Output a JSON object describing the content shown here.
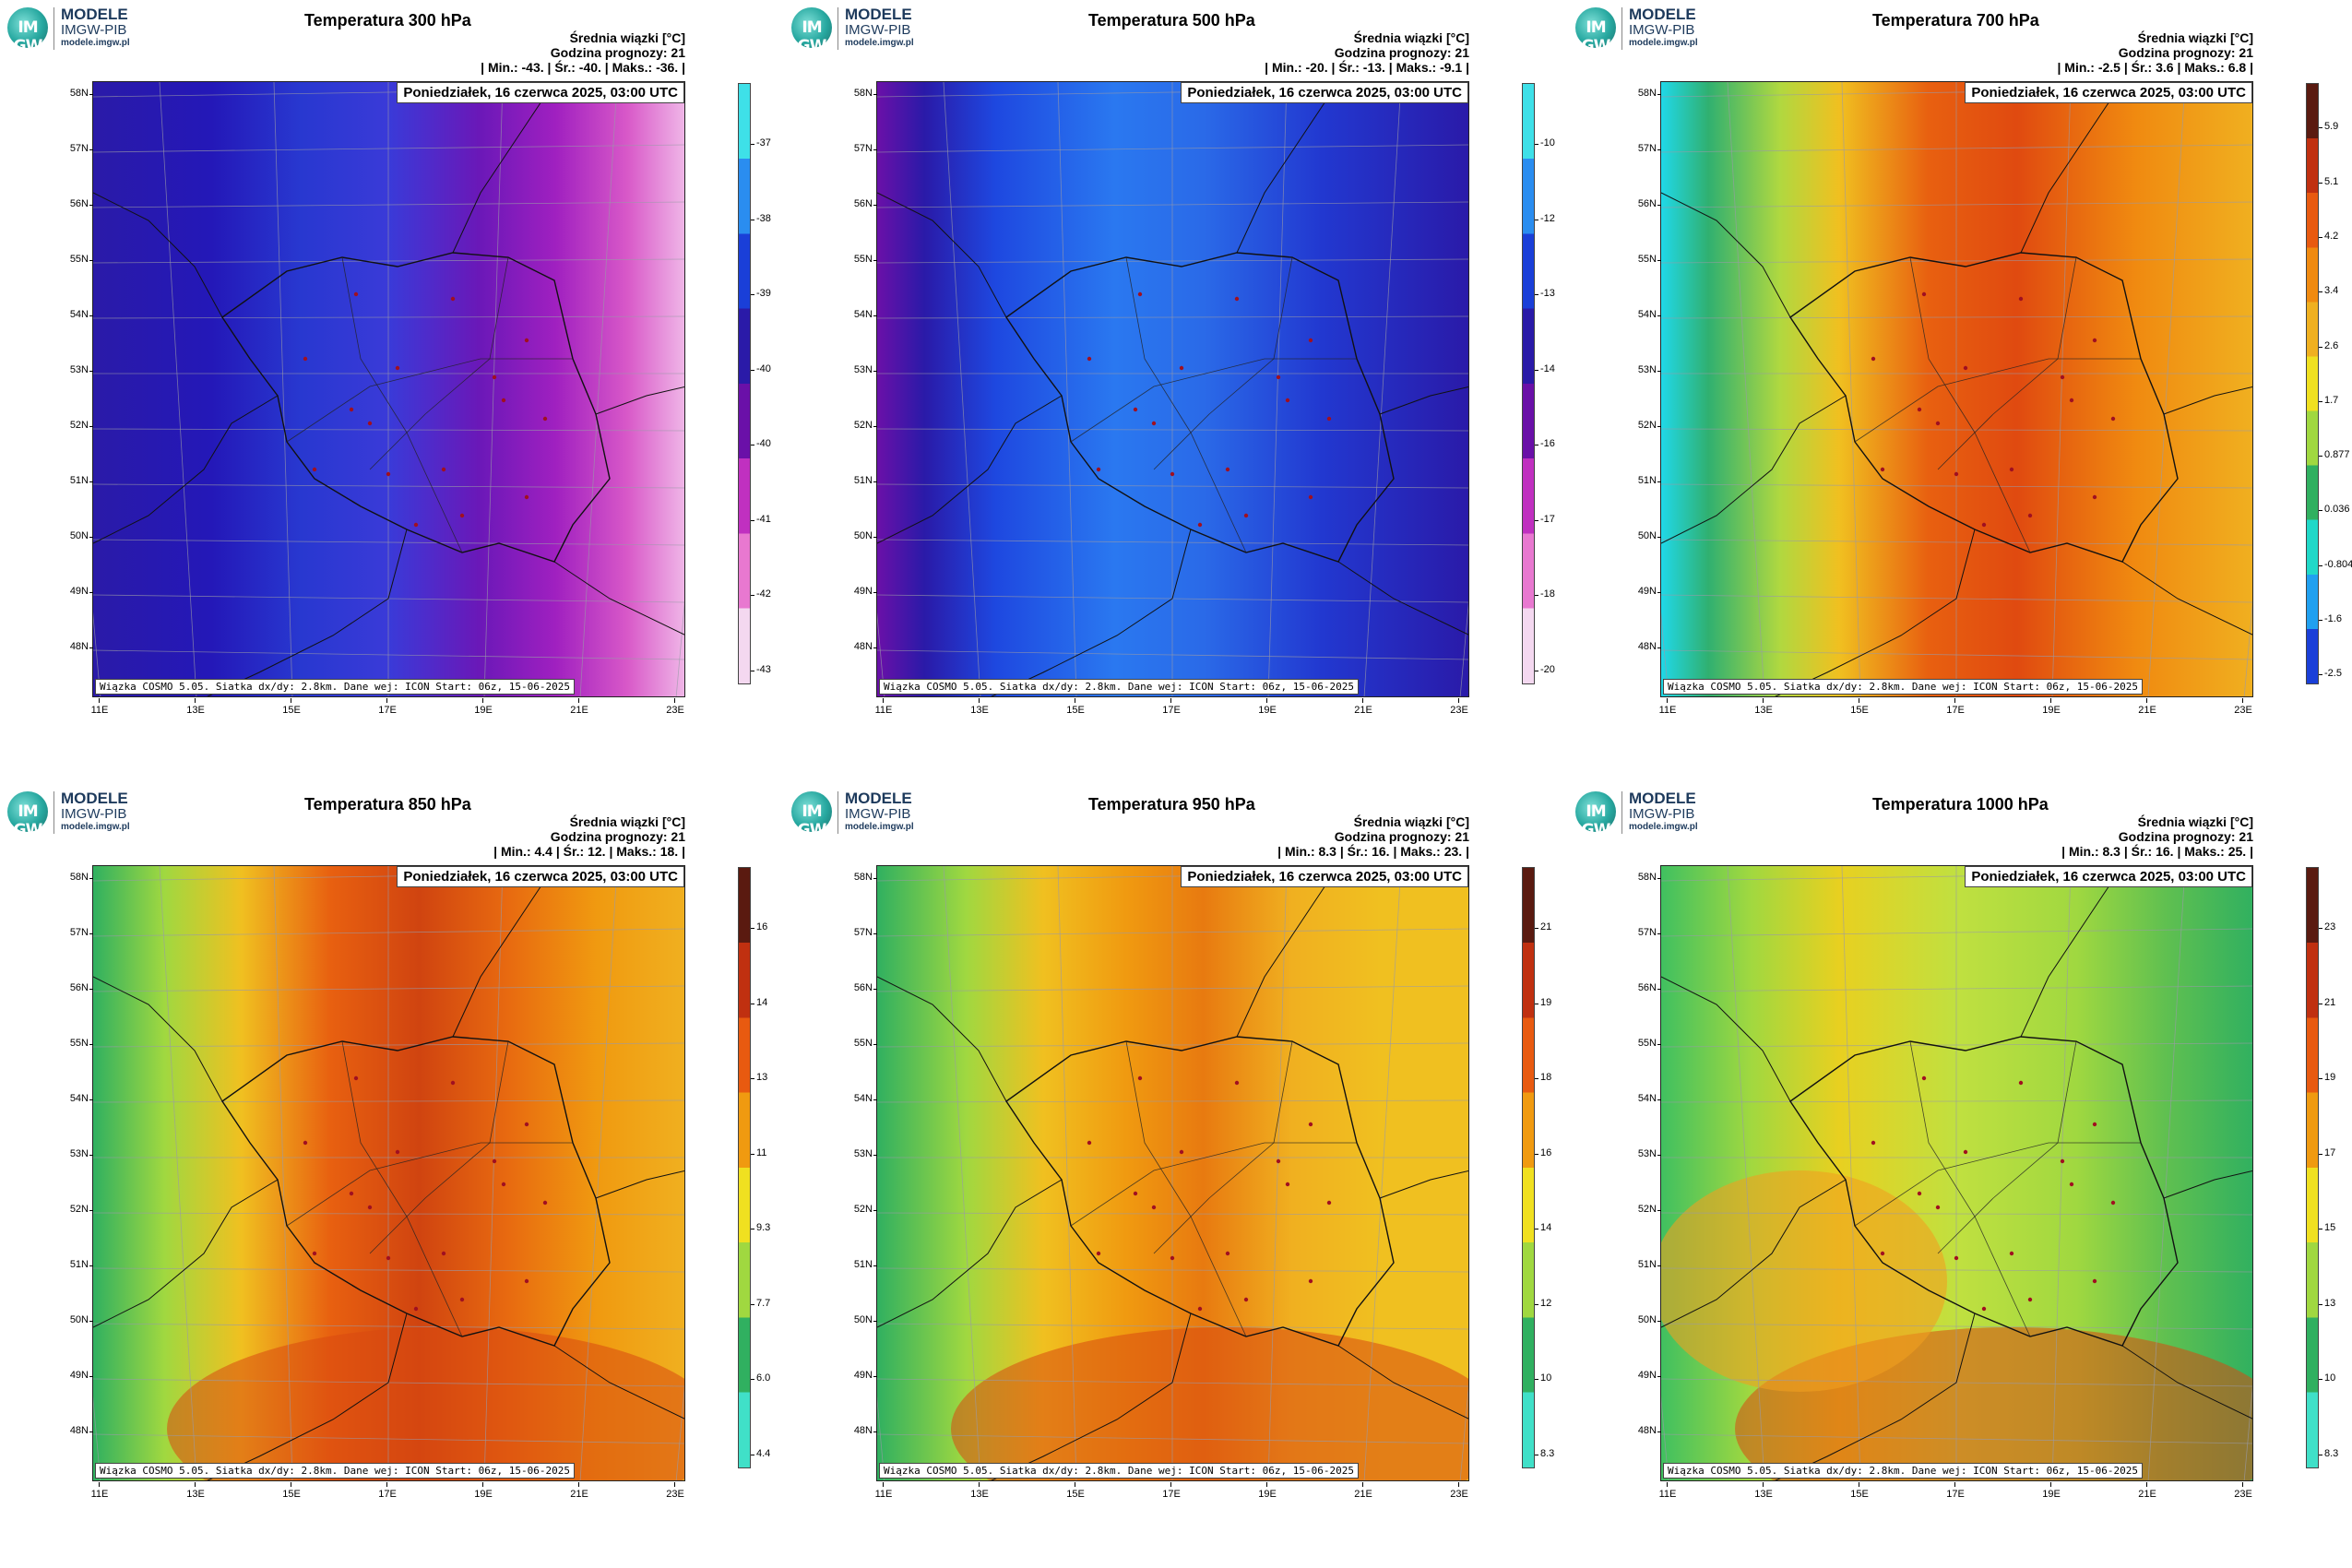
{
  "brand": {
    "name": "MODELE",
    "org": "IMGW-PIB",
    "url": "modele.imgw.pl",
    "logo_text": "IM GW"
  },
  "common": {
    "legend_title": "Średnia wiązki [°C]",
    "forecast_hour": "Godzina prognozy: 21",
    "date": "Poniedziałek, 16 czerwca 2025, 03:00 UTC",
    "footer": "Wiązka COSMO 5.05. Siatka dx/dy: 2.8km. Dane wej: ICON Start: 06z, 15-06-2025",
    "lat_labels": [
      "58N",
      "57N",
      "56N",
      "55N",
      "54N",
      "53N",
      "52N",
      "51N",
      "50N",
      "49N",
      "48N"
    ],
    "lon_labels": [
      "11E",
      "13E",
      "15E",
      "17E",
      "19E",
      "21E",
      "23E"
    ]
  },
  "panels": [
    {
      "title": "Temperatura 300 hPa",
      "stats": "| Min.:   -43. | Śr.:   -40. | Maks.:   -36. |",
      "scale": [
        "-37",
        "-38",
        "-39",
        "-40",
        "-40",
        "-41",
        "-42",
        "-43"
      ],
      "colors": [
        "#3ee0e8",
        "#2a8df0",
        "#1a3fd8",
        "#2a1aa8",
        "#6a10a8",
        "#c030c0",
        "#e878d0",
        "#f4d8f0"
      ],
      "field": "cold300"
    },
    {
      "title": "Temperatura 500 hPa",
      "stats": "| Min.:   -20. | Śr.:   -13. | Maks.:   -9.1 |",
      "scale": [
        "-10",
        "-12",
        "-13",
        "-14",
        "-16",
        "-17",
        "-18",
        "-20"
      ],
      "colors": [
        "#3ee0e8",
        "#2a8df0",
        "#1a3fd8",
        "#2a1aa8",
        "#6a10a8",
        "#c030c0",
        "#e878d0",
        "#f4d8f0"
      ],
      "field": "cold500"
    },
    {
      "title": "Temperatura 700 hPa",
      "stats": "| Min.:   -2.5 | Śr.:    3.6 | Maks.:    6.8 |",
      "scale": [
        "5.9",
        "5.1",
        "4.2",
        "3.4",
        "2.6",
        "1.7",
        "0.877",
        "0.036",
        "-0.804",
        "-1.6",
        "-2.5"
      ],
      "colors": [
        "#5a1a10",
        "#c03010",
        "#e85a10",
        "#f08a10",
        "#f0b020",
        "#f0e020",
        "#a0d840",
        "#30b060",
        "#20d8c8",
        "#20a0f0",
        "#1a3fd8"
      ],
      "field": "warm700"
    },
    {
      "title": "Temperatura 850 hPa",
      "stats": "| Min.:    4.4 | Śr.:    12. | Maks.:    18. |",
      "scale": [
        "16",
        "14",
        "13",
        "11",
        "9.3",
        "7.7",
        "6.0",
        "4.4"
      ],
      "colors": [
        "#5a1a10",
        "#c03010",
        "#e85a10",
        "#f09a10",
        "#f0e020",
        "#a0d840",
        "#30b060",
        "#40e0c8"
      ],
      "field": "warm850"
    },
    {
      "title": "Temperatura 950 hPa",
      "stats": "| Min.:    8.3 | Śr.:    16. | Maks.:    23. |",
      "scale": [
        "21",
        "19",
        "18",
        "16",
        "14",
        "12",
        "10",
        "8.3"
      ],
      "colors": [
        "#5a1a10",
        "#c03010",
        "#e85a10",
        "#f09a10",
        "#f0e020",
        "#a0d840",
        "#30b060",
        "#40e0c8"
      ],
      "field": "warm950"
    },
    {
      "title": "Temperatura 1000 hPa",
      "stats": "| Min.:    8.3 | Śr.:    16. | Maks.:    25. |",
      "scale": [
        "23",
        "21",
        "19",
        "17",
        "15",
        "13",
        "10",
        "8.3"
      ],
      "colors": [
        "#5a1a10",
        "#c03010",
        "#e85a10",
        "#f09a10",
        "#f0e020",
        "#a0d840",
        "#30b060",
        "#40e0c8"
      ],
      "field": "warm1000"
    }
  ]
}
